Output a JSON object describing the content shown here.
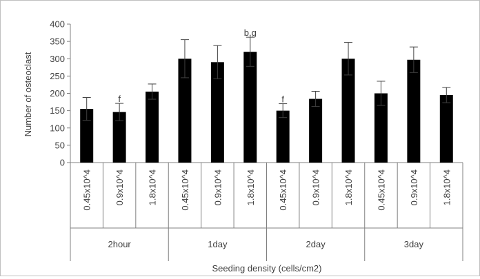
{
  "chart_data": {
    "type": "bar",
    "title": "",
    "xlabel": "Seeding density (cells/cm2)",
    "ylabel": "Number of osteoclast",
    "ylim": [
      0,
      400
    ],
    "yticks": [
      0,
      50,
      100,
      150,
      200,
      250,
      300,
      350,
      400
    ],
    "groups": [
      {
        "label": "2hour",
        "categories": [
          "0.45x10^4",
          "0.9x10^4",
          "1.8x10^4"
        ]
      },
      {
        "label": "1day",
        "categories": [
          "0.45x10^4",
          "0.9x10^4",
          "1.8x10^4"
        ]
      },
      {
        "label": "2day",
        "categories": [
          "0.45x10^4",
          "0.9x10^4",
          "1.8x10^4"
        ]
      },
      {
        "label": "3day",
        "categories": [
          "0.45x10^4",
          "0.9x10^4",
          "1.8x10^4"
        ]
      }
    ],
    "values": [
      155,
      146,
      205,
      300,
      290,
      320,
      150,
      184,
      300,
      200,
      297,
      195
    ],
    "errors": [
      33,
      25,
      22,
      55,
      48,
      42,
      20,
      22,
      47,
      35,
      37,
      22
    ],
    "annotations": [
      {
        "index": 1,
        "text": "f"
      },
      {
        "index": 5,
        "text": "b,g"
      },
      {
        "index": 6,
        "text": "f"
      }
    ],
    "grid": false,
    "legend": "none",
    "bar_color": "#000000",
    "axis_color": "#808080"
  }
}
